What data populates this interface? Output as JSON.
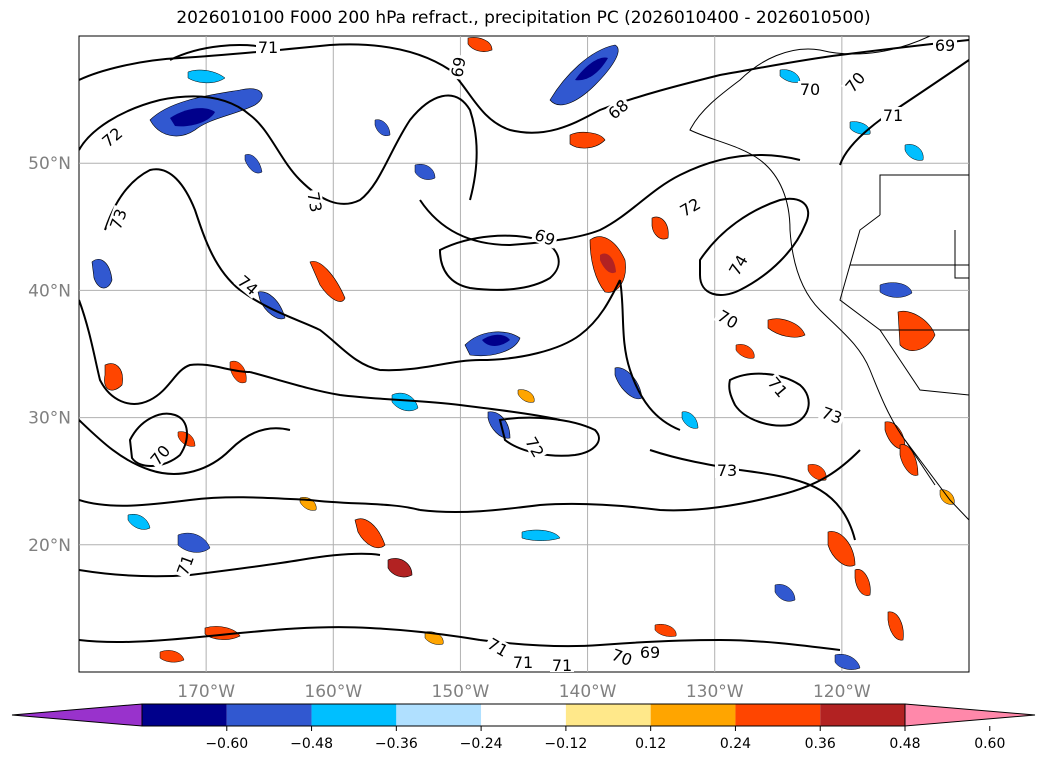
{
  "title": "2026010100 F000 200 hPa refract., precipitation PC (2026010400 - 2026010500)",
  "map": {
    "lon_range": [
      -180,
      -110
    ],
    "lat_range": [
      10,
      60
    ],
    "lat_ticks": [
      {
        "value": 50,
        "label": "50°N"
      },
      {
        "value": 40,
        "label": "40°N"
      },
      {
        "value": 30,
        "label": "30°N"
      },
      {
        "value": 20,
        "label": "20°N"
      }
    ],
    "lon_ticks": [
      {
        "value": -170,
        "label": "170°W"
      },
      {
        "value": -160,
        "label": "160°W"
      },
      {
        "value": -150,
        "label": "150°W"
      },
      {
        "value": -140,
        "label": "140°W"
      },
      {
        "value": -130,
        "label": "130°W"
      },
      {
        "value": -120,
        "label": "120°W"
      }
    ],
    "grid": true,
    "contour_labels": [
      "71",
      "69",
      "69",
      "72",
      "68",
      "70",
      "70",
      "71",
      "69",
      "73",
      "72",
      "74",
      "73",
      "74",
      "70",
      "71",
      "73",
      "72",
      "73",
      "70",
      "71",
      "71",
      "71",
      "71",
      "70",
      "69"
    ],
    "colors": {
      "contour": "#000000",
      "grid": "#b0b0b0",
      "land_border": "#000000",
      "neg_strong": "#00008b",
      "neg_mid": "#3158d0",
      "neg_light": "#00bfff",
      "neg_faint": "#b0e0ff",
      "pos_faint": "#ffe88a",
      "pos_light": "#ffa500",
      "pos_mid": "#ff4500",
      "pos_strong": "#b22222"
    }
  },
  "colorbar": {
    "ticks": [
      "−0.60",
      "−0.48",
      "−0.36",
      "−0.24",
      "−0.12",
      "0.12",
      "0.24",
      "0.36",
      "0.48",
      "0.60"
    ],
    "colors": [
      "#9932cc",
      "#00008b",
      "#3158d0",
      "#00bfff",
      "#b0e0ff",
      "#ffffff",
      "#ffe88a",
      "#ffa500",
      "#ff4500",
      "#b22222",
      "#ff88aa"
    ]
  }
}
